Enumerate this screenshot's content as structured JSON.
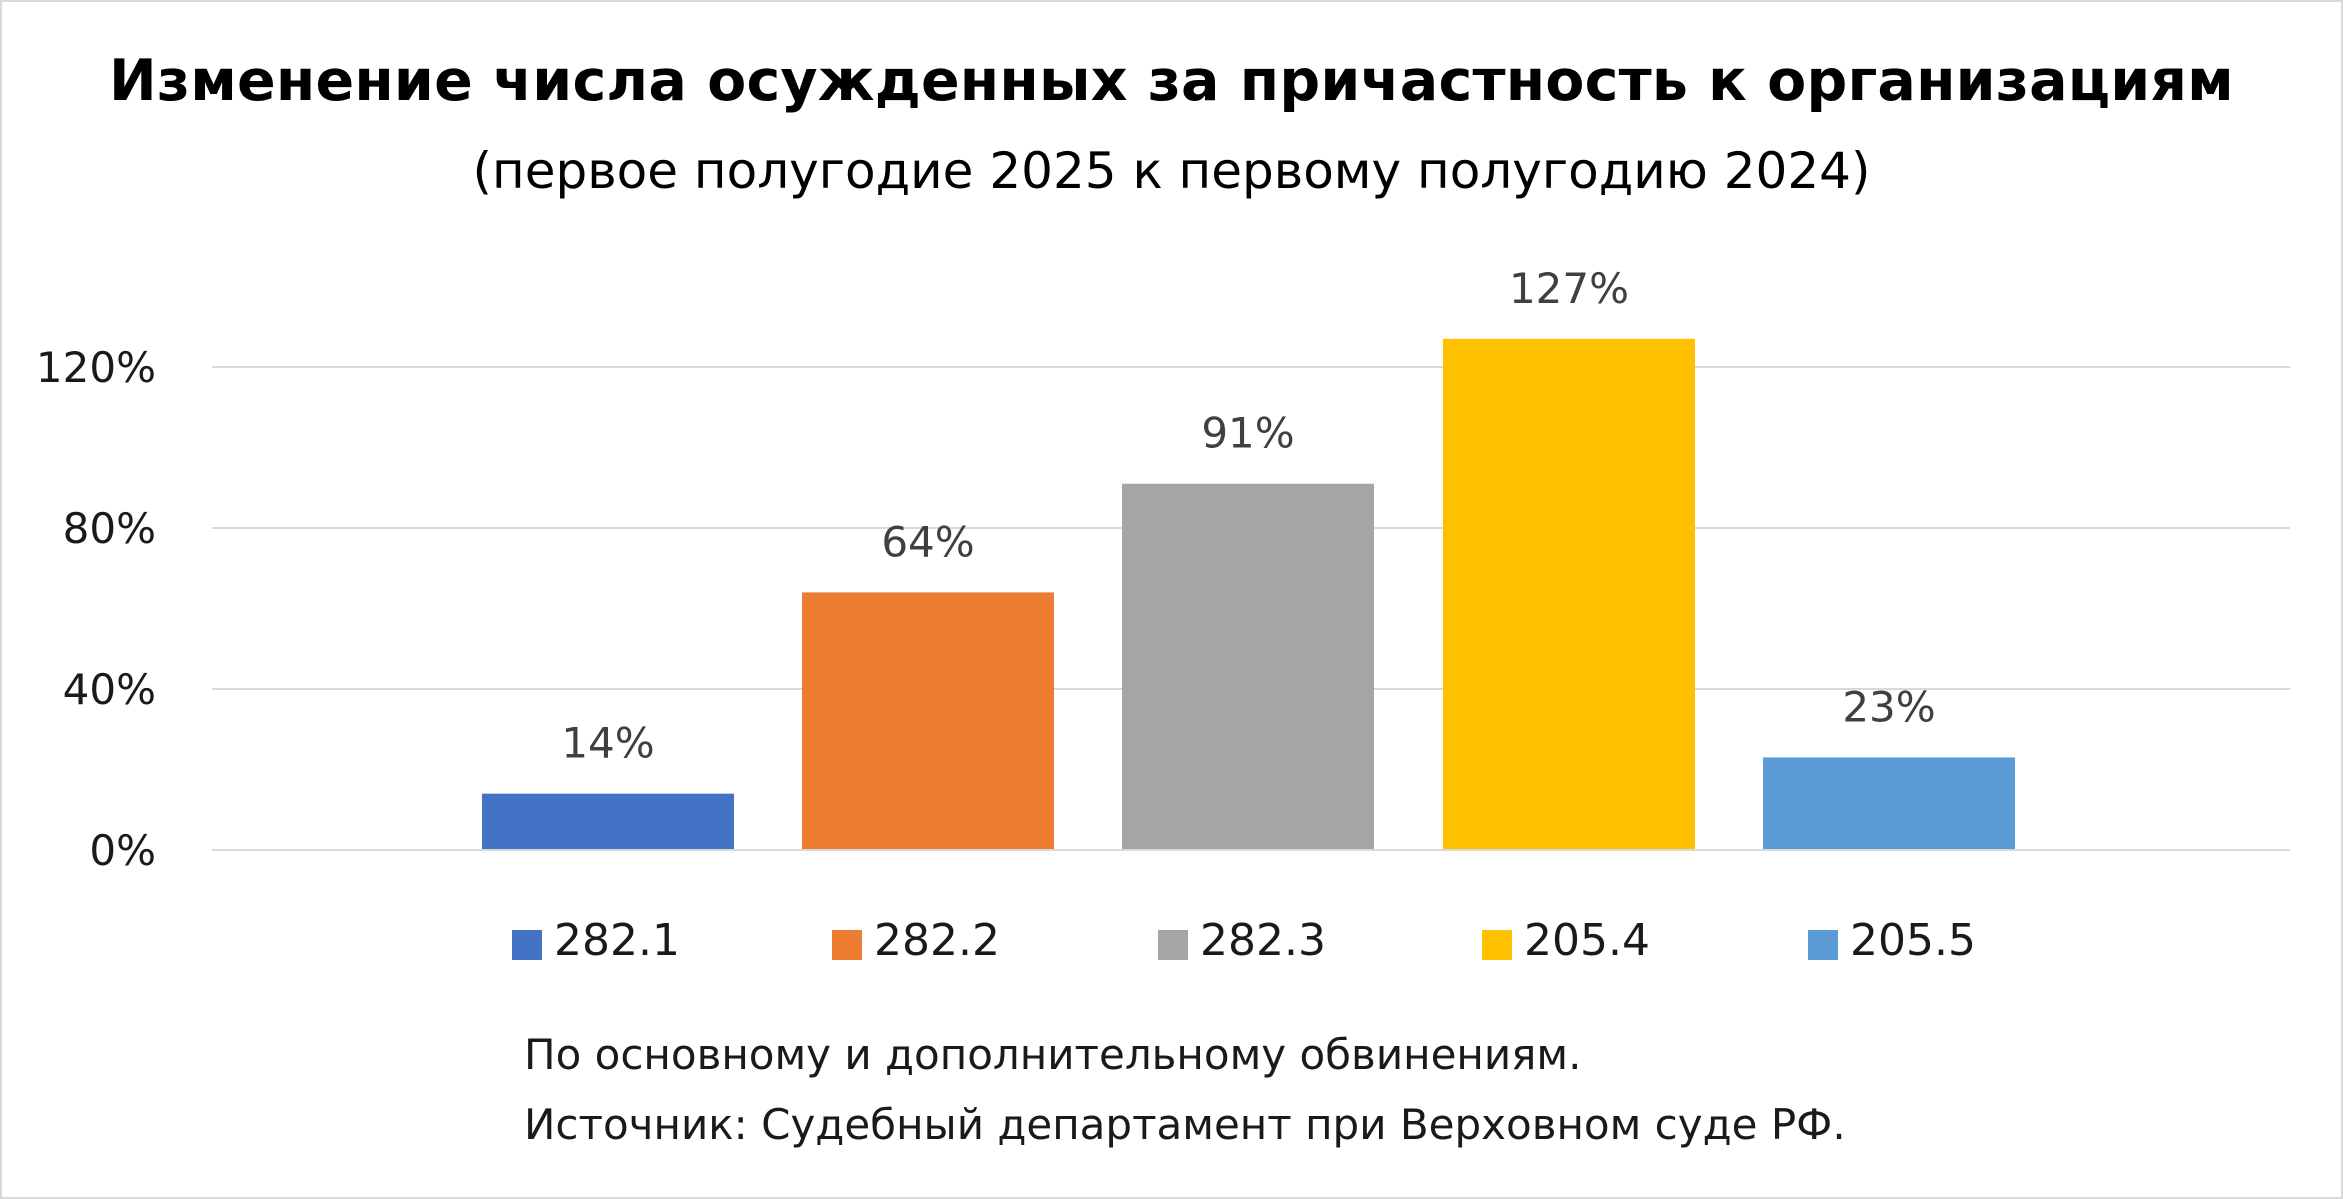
{
  "chart_data": {
    "type": "bar",
    "title": "Изменение числа осужденных за причастность к организациям",
    "subtitle": "(первое полугодие 2025 к первому полугодию 2024)",
    "xlabel": "",
    "ylabel": "",
    "ylim": [
      0,
      140
    ],
    "yticks": [
      0,
      40,
      80,
      120
    ],
    "ytick_labels": [
      "0%",
      "40%",
      "80%",
      "120%"
    ],
    "grid": true,
    "legend_position": "bottom",
    "categories": [
      "282.1",
      "282.2",
      "282.3",
      "205.4",
      "205.5"
    ],
    "values": [
      14,
      64,
      91,
      127,
      23
    ],
    "data_labels": [
      "14%",
      "64%",
      "91%",
      "127%",
      "23%"
    ],
    "colors": [
      "#4472C4",
      "#ED7D31",
      "#A5A5A5",
      "#FFC000",
      "#5B9BD5"
    ],
    "notes": [
      "По основному и дополнительному обвинениям.",
      "Источник: Судебный департамент при Верховном суде РФ."
    ]
  }
}
